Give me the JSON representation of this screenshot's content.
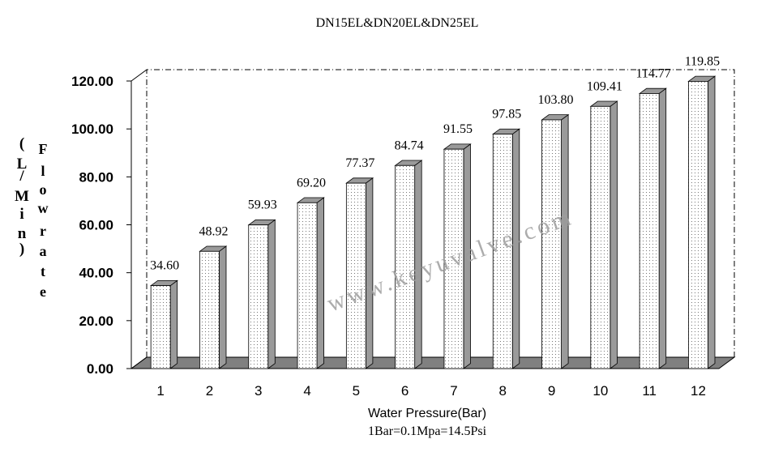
{
  "chart_data": {
    "type": "bar",
    "title": "DN15EL&DN20EL&DN25EL",
    "xlabel": "Water Pressure(Bar)",
    "xnote": "1Bar=0.1Mpa=14.5Psi",
    "ylabel_chars": [
      "(",
      "L",
      "/",
      "M",
      "i",
      "n",
      ")",
      "F",
      "l",
      "o",
      "w",
      "r",
      "a",
      "t",
      "e"
    ],
    "categories": [
      "1",
      "2",
      "3",
      "4",
      "5",
      "6",
      "7",
      "8",
      "9",
      "10",
      "11",
      "12"
    ],
    "values": [
      34.6,
      48.92,
      59.93,
      69.2,
      77.37,
      84.74,
      91.55,
      97.85,
      103.8,
      109.41,
      114.77,
      119.85
    ],
    "data_labels": [
      "34.60",
      "48.92",
      "59.93",
      "69.20",
      "77.37",
      "84.74",
      "91.55",
      "97.85",
      "103.80",
      "109.41",
      "114.77",
      "119.85"
    ],
    "yticks": [
      "0.00",
      "20.00",
      "40.00",
      "60.00",
      "80.00",
      "100.00",
      "120.00"
    ],
    "ylim": [
      0,
      120
    ],
    "grid": false,
    "legend": "none",
    "watermark": "www.keyuvalve.com",
    "colors": {
      "bar_face": "#ffffff",
      "bar_side": "#9a9a9a",
      "floor": "#808080",
      "axis": "#000000",
      "watermark": "#9e9e9e"
    }
  }
}
